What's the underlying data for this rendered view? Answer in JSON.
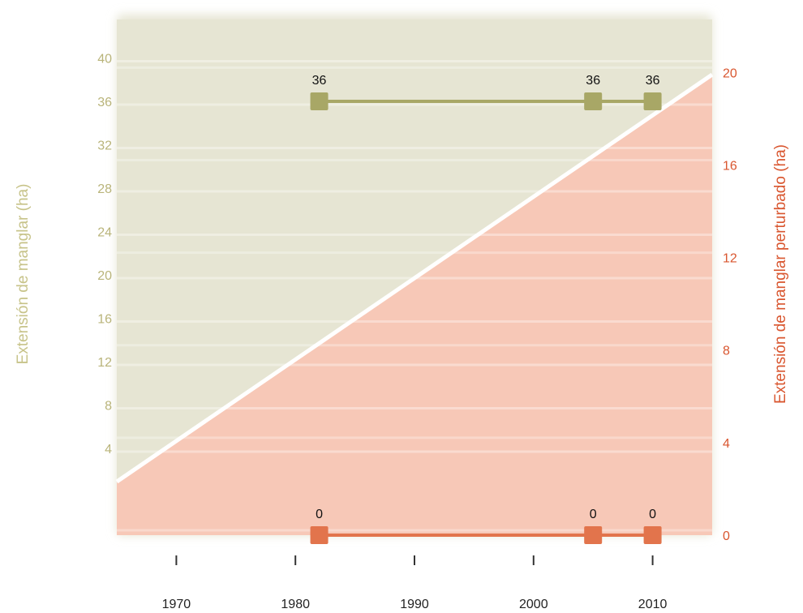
{
  "chart_data": {
    "type": "line",
    "x_ticks": [
      1970,
      1980,
      1990,
      2000,
      2010
    ],
    "xlim": [
      1965,
      2015
    ],
    "y_left": {
      "label": "Extensión de manglar (ha)",
      "ticks": [
        4,
        8,
        12,
        16,
        20,
        24,
        28,
        32,
        36,
        40
      ],
      "range": [
        -4,
        44
      ],
      "color": "#b9b47a"
    },
    "y_right": {
      "label": "Extensión de manglar perturbado (ha)",
      "ticks": [
        0,
        4,
        8,
        12,
        16,
        20
      ],
      "range": [
        0,
        22.5
      ],
      "color": "#d9562f"
    },
    "series": [
      {
        "axis": "left",
        "color": "#a8a766",
        "points": [
          {
            "x": 1982,
            "y": 36,
            "label": "36"
          },
          {
            "x": 2005,
            "y": 36,
            "label": "36"
          },
          {
            "x": 2010,
            "y": 36,
            "label": "36"
          }
        ]
      },
      {
        "axis": "right",
        "color": "#e2744c",
        "points": [
          {
            "x": 1982,
            "y": 0,
            "label": "0"
          },
          {
            "x": 2005,
            "y": 0,
            "label": "0"
          },
          {
            "x": 2010,
            "y": 0,
            "label": "0"
          }
        ]
      }
    ],
    "background": {
      "upper_color": "#e6e5d3",
      "lower_color": "#f7c8b7"
    }
  }
}
